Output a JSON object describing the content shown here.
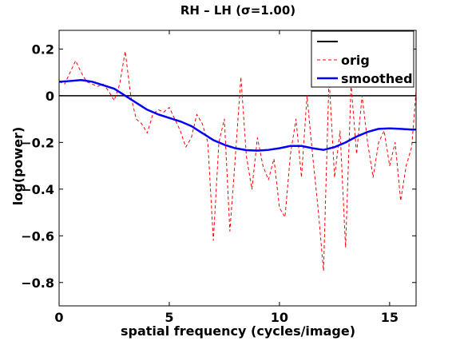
{
  "chart_data": {
    "type": "line",
    "title": "RH – LH (σ=1.00)",
    "xlabel": "spatial frequency (cycles/image)",
    "ylabel": "log(power)",
    "xlim": [
      0,
      16.2
    ],
    "ylim": [
      -0.9,
      0.28
    ],
    "xticks": [
      0,
      5,
      10,
      15
    ],
    "yticks": [
      0.2,
      0,
      -0.2,
      -0.4,
      -0.6,
      -0.8
    ],
    "ytick_labels": [
      "0.2",
      "0",
      "−0.2",
      "−0.4",
      "−0.6",
      "−0.8"
    ],
    "legend_position": "top-right",
    "grid": false,
    "series": [
      {
        "name": "",
        "color": "#000000",
        "style": "solid",
        "x": [
          0,
          16.2
        ],
        "y": [
          0,
          0
        ]
      },
      {
        "name": "orig",
        "color": "#ff0000",
        "style": "dashed",
        "x": [
          0.0,
          0.25,
          0.5,
          0.75,
          1.0,
          1.25,
          1.5,
          1.75,
          2.0,
          2.25,
          2.5,
          2.75,
          3.0,
          3.25,
          3.5,
          3.75,
          4.0,
          4.25,
          4.5,
          4.75,
          5.0,
          5.25,
          5.5,
          5.75,
          6.0,
          6.25,
          6.5,
          6.75,
          7.0,
          7.25,
          7.5,
          7.75,
          8.0,
          8.25,
          8.5,
          8.75,
          9.0,
          9.25,
          9.5,
          9.75,
          10.0,
          10.25,
          10.5,
          10.75,
          11.0,
          11.25,
          11.5,
          11.75,
          12.0,
          12.25,
          12.5,
          12.75,
          13.0,
          13.25,
          13.5,
          13.75,
          14.0,
          14.25,
          14.5,
          14.75,
          15.0,
          15.25,
          15.5,
          15.75,
          16.0,
          16.2
        ],
        "y": [
          0.06,
          0.05,
          0.1,
          0.15,
          0.1,
          0.06,
          0.05,
          0.04,
          0.05,
          0.02,
          -0.02,
          0.05,
          0.19,
          0.0,
          -0.1,
          -0.12,
          -0.16,
          -0.08,
          -0.06,
          -0.07,
          -0.05,
          -0.1,
          -0.15,
          -0.22,
          -0.18,
          -0.08,
          -0.12,
          -0.2,
          -0.62,
          -0.2,
          -0.1,
          -0.58,
          -0.26,
          0.08,
          -0.26,
          -0.4,
          -0.18,
          -0.3,
          -0.36,
          -0.27,
          -0.48,
          -0.52,
          -0.25,
          -0.1,
          -0.35,
          0.0,
          -0.25,
          -0.48,
          -0.75,
          0.08,
          -0.35,
          -0.15,
          -0.65,
          0.05,
          -0.25,
          0.0,
          -0.2,
          -0.35,
          -0.2,
          -0.15,
          -0.3,
          -0.2,
          -0.45,
          -0.3,
          -0.22,
          0.02
        ]
      },
      {
        "name": "smoothed",
        "color": "#0000ff",
        "style": "solid",
        "x": [
          0.0,
          0.5,
          1.0,
          1.5,
          2.0,
          2.5,
          3.0,
          3.5,
          4.0,
          4.5,
          5.0,
          5.5,
          6.0,
          6.5,
          7.0,
          7.5,
          8.0,
          8.5,
          9.0,
          9.5,
          10.0,
          10.5,
          11.0,
          11.5,
          12.0,
          12.5,
          13.0,
          13.5,
          14.0,
          14.5,
          15.0,
          15.5,
          16.0,
          16.2
        ],
        "y": [
          0.06,
          0.063,
          0.067,
          0.06,
          0.045,
          0.03,
          0.0,
          -0.03,
          -0.06,
          -0.08,
          -0.095,
          -0.11,
          -0.13,
          -0.16,
          -0.19,
          -0.21,
          -0.225,
          -0.233,
          -0.235,
          -0.232,
          -0.225,
          -0.215,
          -0.215,
          -0.225,
          -0.232,
          -0.22,
          -0.2,
          -0.175,
          -0.155,
          -0.142,
          -0.14,
          -0.142,
          -0.145,
          -0.145
        ]
      }
    ]
  }
}
